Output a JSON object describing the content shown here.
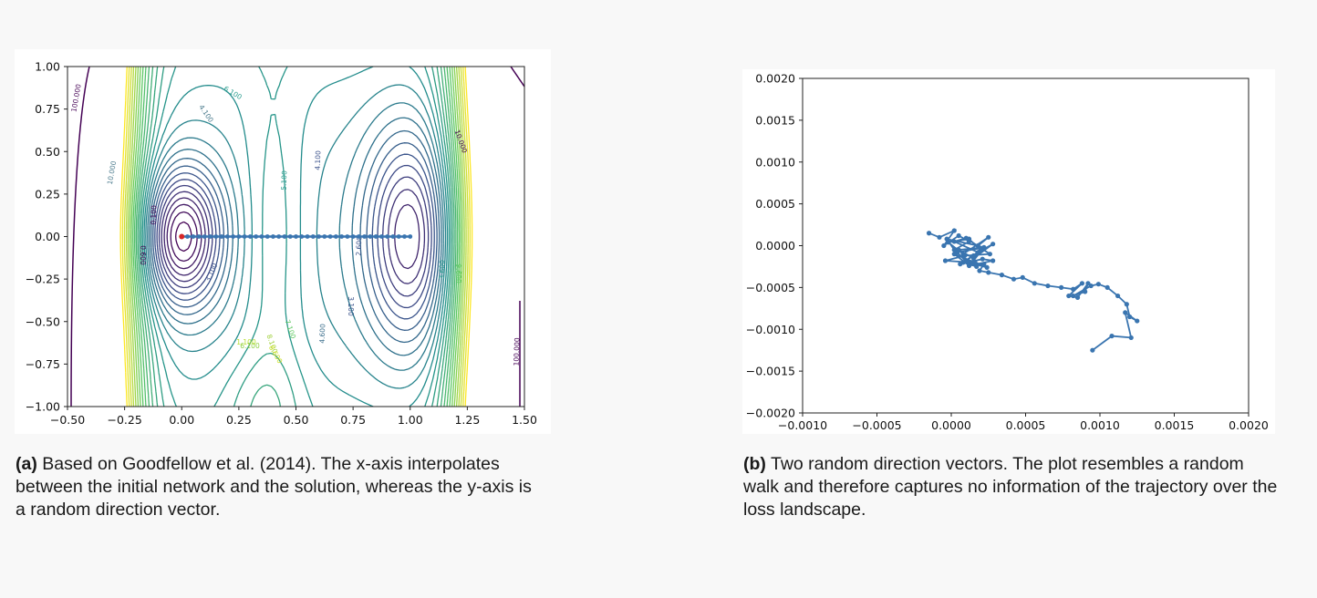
{
  "figure": {
    "caption_a": {
      "tag": "(a)",
      "text": "Based on Goodfellow et al. (2014). The x-axis interpolates between the initial network and the solution, whereas the y-axis is a random direction vector."
    },
    "caption_b": {
      "tag": "(b)",
      "text": "Two random direction vectors. The plot resembles a random walk and therefore captures no information of the trajectory over the loss landscape."
    }
  },
  "chart_data": [
    {
      "type": "contour",
      "title": "",
      "xlabel": "",
      "ylabel": "",
      "xlim": [
        -0.5,
        1.5
      ],
      "ylim": [
        -1.0,
        1.0
      ],
      "x_ticks": [
        "−0.50",
        "−0.25",
        "0.00",
        "0.25",
        "0.50",
        "0.75",
        "1.00",
        "1.25",
        "1.50"
      ],
      "y_ticks": [
        "1.00",
        "0.75",
        "0.50",
        "0.25",
        "0.00",
        "−0.25",
        "−0.50",
        "−0.75",
        "−1.00"
      ],
      "contour_labels": [
        "100.000",
        "10.000",
        "6.100",
        "4.100",
        "5.100",
        "4.100",
        "0.100",
        "0.600",
        "3.100",
        "2.600",
        "3.100",
        "4.600",
        "7.100",
        "8.100",
        "6.100",
        "10.000",
        "3.600",
        "100.000",
        "9.600",
        "1.100",
        "8.600"
      ],
      "colormap": "viridis",
      "colors": {
        "low": "#440154",
        "mid": "#21908d",
        "high": "#fde725"
      },
      "series": [
        {
          "type": "line",
          "color": "#3a75b0",
          "x": [
            0.0,
            0.025,
            0.05,
            0.075,
            0.1,
            0.125,
            0.15,
            0.175,
            0.2,
            0.225,
            0.25,
            0.275,
            0.3,
            0.325,
            0.35,
            0.375,
            0.4,
            0.425,
            0.45,
            0.475,
            0.5,
            0.525,
            0.55,
            0.575,
            0.6,
            0.625,
            0.65,
            0.675,
            0.7,
            0.725,
            0.75,
            0.775,
            0.8,
            0.825,
            0.85,
            0.875,
            0.9,
            0.925,
            0.95,
            0.975,
            1.0
          ],
          "y": [
            0.0,
            0.0,
            0.0,
            0.0,
            0.0,
            0.0,
            0.0,
            0.0,
            0.0,
            0.0,
            0.0,
            0.0,
            0.0,
            0.0,
            0.0,
            0.0,
            0.0,
            0.0,
            0.0,
            0.0,
            0.0,
            0.0,
            0.0,
            0.0,
            0.0,
            0.0,
            0.0,
            0.0,
            0.0,
            0.0,
            0.0,
            0.0,
            0.0,
            0.0,
            0.0,
            0.0,
            0.0,
            0.0,
            0.0,
            0.0,
            0.0
          ]
        },
        {
          "type": "scatter",
          "color": "#d62728",
          "x": [
            0.0
          ],
          "y": [
            0.0
          ]
        }
      ]
    },
    {
      "type": "line",
      "title": "",
      "xlabel": "",
      "ylabel": "",
      "xlim": [
        -0.001,
        0.002
      ],
      "ylim": [
        -0.002,
        0.002
      ],
      "x_ticks": [
        "−0.0010",
        "−0.0005",
        "0.0000",
        "0.0005",
        "0.0010",
        "0.0015",
        "0.0020"
      ],
      "y_ticks": [
        "0.0020",
        "0.0015",
        "0.0010",
        "0.0005",
        "0.0000",
        "−0.0005",
        "−0.0010",
        "−0.0015",
        "−0.0020"
      ],
      "series": [
        {
          "color": "#3a75b0",
          "x": [
            -0.00015,
            -8e-05,
            2e-05,
            -5e-05,
            5e-05,
            0.00012,
            2e-05,
            -3e-05,
            0.00018,
            0.00025,
            8e-05,
            -2e-05,
            0.00012,
            0.0002,
            0.00028,
            0.00015,
            5e-05,
            0.00022,
            0.00014,
            -4e-05,
            9e-05,
            0.00026,
            0.0001,
            2e-05,
            0.00018,
            6e-05,
            0.00021,
            0.00028,
            0.00012,
            2e-05,
            0.00016,
            0.00024,
            0.0001,
            4e-05,
            0.0002,
            0.00015,
            8e-05,
            0.00017,
            0.00012,
            0.00022,
            0.00019,
            0.00025,
            0.00034,
            0.00042,
            0.00048,
            0.00056,
            0.00065,
            0.00074,
            0.00082,
            0.00088,
            0.00079,
            0.00085,
            0.00092,
            0.0009,
            0.00082,
            0.00094,
            0.00099,
            0.00105,
            0.00112,
            0.00118,
            0.0012,
            0.00125,
            0.00117,
            0.00121,
            0.00108,
            0.00095
          ],
          "y": [
            0.00015,
            0.0001,
            0.00018,
            0.0,
            0.00012,
            5e-05,
            -5e-05,
            8e-05,
            0.0,
            0.0001,
            -0.0001,
            4e-05,
            8e-05,
            -6e-05,
            2e-05,
            -0.00015,
            -5e-05,
            -2e-05,
            -0.0002,
            -0.00018,
            -0.00012,
            -0.0001,
            9e-05,
            5e-05,
            -8e-05,
            -0.00022,
            -0.00016,
            -0.00018,
            -0.00024,
            -0.0001,
            -0.0002,
            -0.00026,
            -0.00019,
            -8e-05,
            -3e-05,
            -0.00012,
            -0.0002,
            -0.00025,
            -0.0002,
            -0.00022,
            -0.0003,
            -0.00032,
            -0.00035,
            -0.0004,
            -0.00038,
            -0.00045,
            -0.00048,
            -0.0005,
            -0.00052,
            -0.00045,
            -0.0006,
            -0.00062,
            -0.00045,
            -0.00055,
            -0.0006,
            -0.00048,
            -0.00046,
            -0.0005,
            -0.0006,
            -0.0007,
            -0.00085,
            -0.0009,
            -0.0008,
            -0.0011,
            -0.00108,
            -0.00125
          ]
        }
      ]
    }
  ]
}
